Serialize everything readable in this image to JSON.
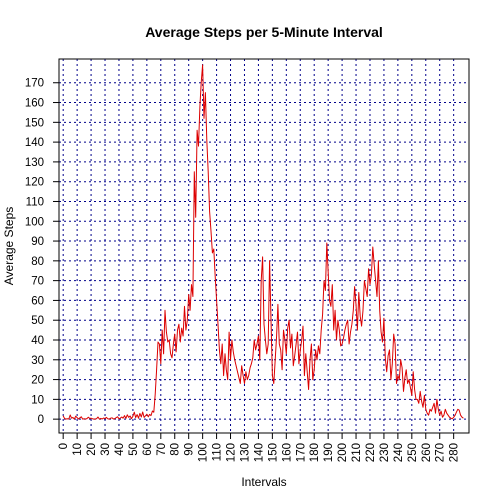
{
  "chart_data": {
    "type": "line",
    "title": "Average Steps per 5-Minute Interval",
    "xlabel": "Intervals",
    "ylabel": "Average Steps",
    "xlim": [
      -3,
      291
    ],
    "ylim": [
      -7,
      182
    ],
    "x_ticks": [
      0,
      10,
      20,
      30,
      40,
      50,
      60,
      70,
      80,
      90,
      100,
      110,
      120,
      130,
      140,
      150,
      160,
      170,
      180,
      190,
      200,
      210,
      220,
      230,
      240,
      250,
      260,
      270,
      280
    ],
    "y_ticks": [
      0,
      10,
      20,
      30,
      40,
      50,
      60,
      70,
      80,
      90,
      100,
      110,
      120,
      130,
      140,
      150,
      160,
      170
    ],
    "grid": true,
    "grid_color": "#00008b",
    "line_color": "#dc0000",
    "series": [
      {
        "x": [
          0,
          1,
          2,
          3,
          4,
          5,
          6,
          7,
          8,
          9,
          10,
          11,
          12,
          13,
          14,
          15,
          16,
          17,
          18,
          19,
          20,
          21,
          22,
          23,
          24,
          25,
          26,
          27,
          28,
          29,
          30,
          31,
          32,
          33,
          34,
          35,
          36,
          37,
          38,
          39,
          40,
          41,
          42,
          43,
          44,
          45,
          46,
          47,
          48,
          49,
          50,
          51,
          52,
          53,
          54,
          55,
          56,
          57,
          58,
          59,
          60,
          61,
          62,
          63,
          64,
          65,
          66,
          67,
          68,
          69,
          70,
          71,
          72,
          73,
          74,
          75,
          76,
          77,
          78,
          79,
          80,
          81,
          82,
          83,
          84,
          85,
          86,
          87,
          88,
          89,
          90,
          91,
          92,
          93,
          94,
          95,
          96,
          97,
          98,
          99,
          100,
          101,
          102,
          103,
          104,
          105,
          106,
          107,
          108,
          109,
          110,
          111,
          112,
          113,
          114,
          115,
          116,
          117,
          118,
          119,
          120,
          121,
          122,
          123,
          124,
          125,
          126,
          127,
          128,
          129,
          130,
          131,
          132,
          133,
          134,
          135,
          136,
          137,
          138,
          139,
          140,
          141,
          142,
          143,
          144,
          145,
          146,
          147,
          148,
          149,
          150,
          151,
          152,
          153,
          154,
          155,
          156,
          157,
          158,
          159,
          160,
          161,
          162,
          163,
          164,
          165,
          166,
          167,
          168,
          169,
          170,
          171,
          172,
          173,
          174,
          175,
          176,
          177,
          178,
          179,
          180,
          181,
          182,
          183,
          184,
          185,
          186,
          187,
          188,
          189,
          190,
          191,
          192,
          193,
          194,
          195,
          196,
          197,
          198,
          199,
          200,
          201,
          202,
          203,
          204,
          205,
          206,
          207,
          208,
          209,
          210,
          211,
          212,
          213,
          214,
          215,
          216,
          217,
          218,
          219,
          220,
          221,
          222,
          223,
          224,
          225,
          226,
          227,
          228,
          229,
          230,
          231,
          232,
          233,
          234,
          235,
          236,
          237,
          238,
          239,
          240,
          241,
          242,
          243,
          244,
          245,
          246,
          247,
          248,
          249,
          250,
          251,
          252,
          253,
          254,
          255,
          256,
          257,
          258,
          259,
          260,
          261,
          262,
          263,
          264,
          265,
          266,
          267,
          268,
          269,
          270,
          271,
          272,
          273,
          274,
          275,
          276,
          277,
          278,
          279,
          280,
          281,
          282,
          283,
          284,
          285,
          286,
          287
        ],
        "y": [
          1.7,
          0.3,
          0.1,
          0.2,
          0.1,
          2.1,
          0.5,
          0.9,
          0,
          1.5,
          0.8,
          0.1,
          0.7,
          1.2,
          0,
          0.2,
          0.1,
          0.3,
          1,
          0.4,
          0.5,
          0.2,
          0,
          0.1,
          0.3,
          1.1,
          0,
          0.4,
          0.1,
          0.6,
          0.3,
          0.9,
          0.2,
          0,
          0.5,
          0.7,
          0.1,
          0.3,
          0.8,
          1.2,
          0.2,
          0.6,
          1.1,
          0.5,
          1.8,
          0.4,
          2.2,
          0.9,
          1.6,
          0.3,
          1.5,
          3.5,
          0.8,
          2.3,
          0.5,
          2.9,
          1.1,
          3.6,
          0.9,
          1.7,
          2.5,
          1.2,
          2.4,
          1.8,
          4.1,
          3.5,
          12.5,
          25,
          39,
          38,
          28,
          45,
          33,
          55,
          44,
          39,
          40,
          33,
          31,
          38,
          43,
          34,
          45,
          48,
          39,
          46,
          42,
          57,
          45,
          50,
          63,
          55,
          68,
          62,
          125,
          102,
          146,
          138,
          158,
          170,
          179,
          152,
          165,
          141,
          125,
          105,
          95,
          84,
          86,
          72,
          60,
          48,
          35,
          28,
          38,
          22,
          33,
          25,
          20,
          44,
          30,
          40,
          34,
          30,
          27,
          24,
          21,
          18,
          27,
          22,
          18,
          24,
          20,
          22,
          26,
          28,
          31,
          40,
          35,
          38,
          42,
          30,
          70,
          82,
          48,
          40,
          33,
          38,
          80,
          50,
          22,
          18,
          30,
          42,
          58,
          38,
          35,
          25,
          45,
          40,
          33,
          46,
          50,
          36,
          43,
          27,
          32,
          38,
          44,
          28,
          35,
          40,
          47,
          22,
          33,
          24,
          15,
          30,
          38,
          20,
          25,
          35,
          30,
          37,
          33,
          45,
          53,
          70,
          65,
          89,
          75,
          60,
          57,
          68,
          45,
          55,
          40,
          50,
          45,
          37,
          38,
          41,
          45,
          48,
          50,
          38,
          44,
          48,
          55,
          67,
          58,
          45,
          64,
          52,
          47,
          55,
          70,
          66,
          62,
          76,
          68,
          73,
          87,
          78,
          70,
          62,
          80,
          55,
          44,
          39,
          51,
          31,
          24,
          32,
          35,
          20,
          28,
          43,
          38,
          18,
          22,
          20,
          30,
          26,
          14,
          21,
          25,
          18,
          20,
          16,
          12,
          24,
          15,
          10,
          10,
          8,
          14,
          9,
          6,
          12,
          5,
          3,
          2,
          5,
          4,
          6,
          8,
          3,
          10,
          5,
          2,
          4,
          1,
          2,
          5,
          3,
          2,
          1,
          0.5,
          0.2,
          1,
          2,
          3.5,
          5,
          4.5,
          2,
          1,
          0.5
        ]
      }
    ]
  }
}
